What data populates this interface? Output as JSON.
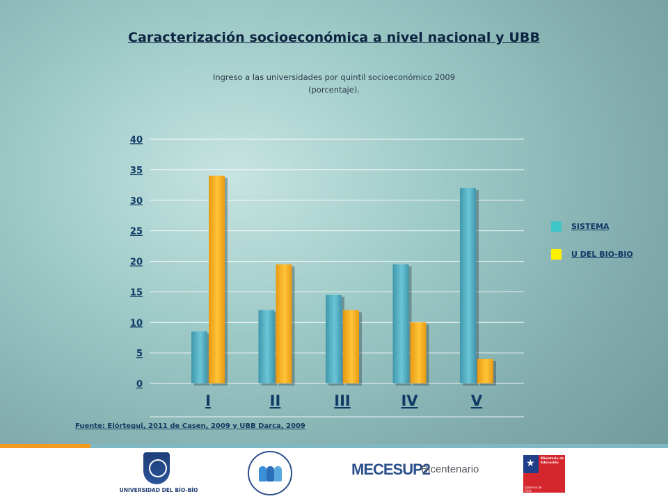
{
  "slide": {
    "title": "Caracterización socioeconómica a nivel nacional y UBB",
    "subtitle_line1": "Ingreso a las universidades por quintil socioeconómico 2009",
    "subtitle_line2": "(porcentaje).",
    "source": "Fuente: Elórtegui, 2011 de Casen, 2009 y UBB Darca, 2009"
  },
  "chart_data": {
    "type": "bar",
    "title": "",
    "xlabel": "",
    "ylabel": "",
    "categories": [
      "I",
      "II",
      "III",
      "IV",
      "V"
    ],
    "series": [
      {
        "name": "SISTEMA",
        "color": "#4fb4c8",
        "values": [
          8.5,
          12,
          14.5,
          19.5,
          32
        ]
      },
      {
        "name": "U DEL BIO-BIO",
        "color": "#f7b21a",
        "values": [
          34,
          19.5,
          12,
          10,
          4
        ]
      }
    ],
    "ylim": [
      0,
      40
    ],
    "yticks": [
      0,
      5,
      10,
      15,
      20,
      25,
      30,
      35,
      40
    ],
    "grid": true,
    "legend_position": "right"
  },
  "legend": {
    "items": [
      {
        "label": "SISTEMA",
        "swatch": "#3ec6c9"
      },
      {
        "label": "U DEL BIO-BIO",
        "swatch": "#ffef00"
      }
    ]
  },
  "colors": {
    "title": "#0c2440",
    "axis_text": "#0e3a66",
    "footer_orange": "#f39a1f",
    "footer_teal": "#7fb8c4"
  },
  "logos": {
    "ubb": {
      "name": "universidad-del-bio-bio-logo",
      "label": "UNIVERSIDAD DEL BÍO-BÍO"
    },
    "programa": {
      "name": "programa-politicas-publicas-logo"
    },
    "mecesup": {
      "name": "mecesup-bicentenario-logo",
      "text_main": "MECESUP2",
      "text_secondary": "Bicentenario"
    },
    "mineduc": {
      "name": "ministerio-educacion-logo",
      "text_main": "Ministerio de Educación",
      "text_secondary": "Gobierno de Chile"
    }
  }
}
